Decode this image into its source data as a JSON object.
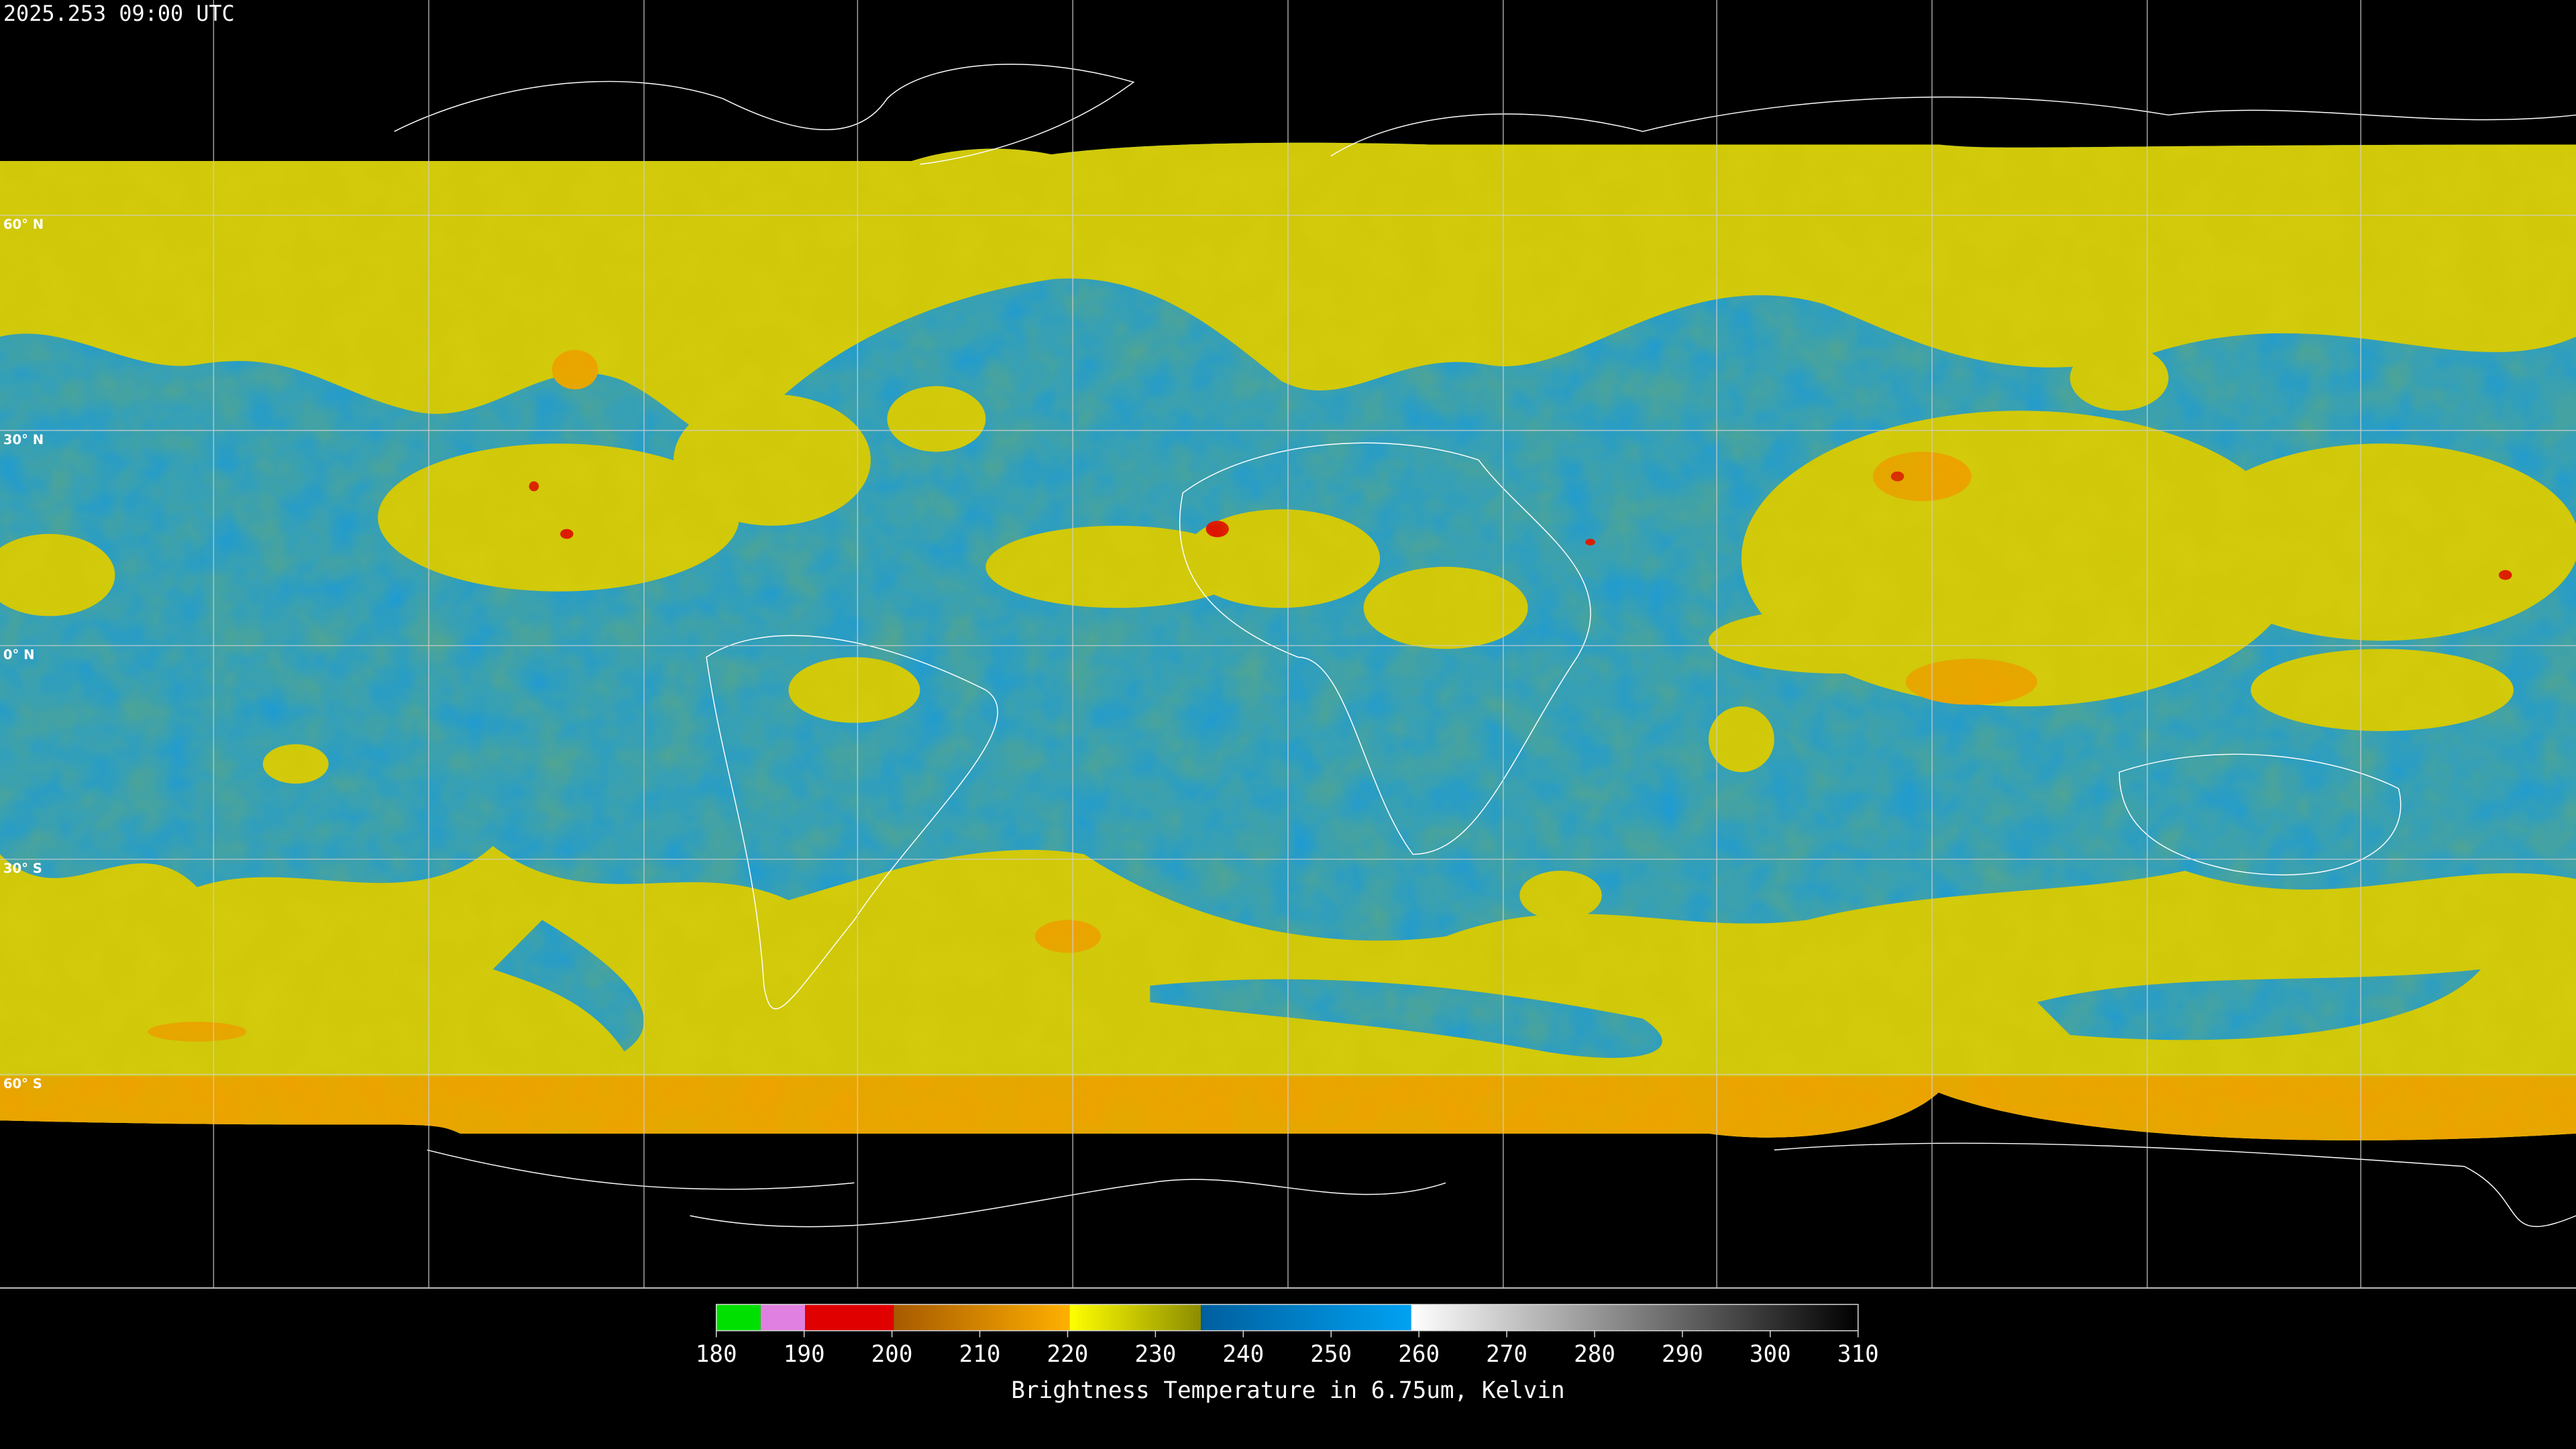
{
  "timestamp": "2025.253 09:00 UTC",
  "lat_labels": [
    "60° N",
    "30° N",
    "0° N",
    "30° S",
    "60° S"
  ],
  "colorbar": {
    "xlim": [
      180,
      310
    ],
    "ticks": [
      180,
      190,
      200,
      210,
      220,
      230,
      240,
      250,
      260,
      270,
      280,
      290,
      300,
      310
    ],
    "label": "Brightness Temperature in 6.75um, Kelvin"
  }
}
